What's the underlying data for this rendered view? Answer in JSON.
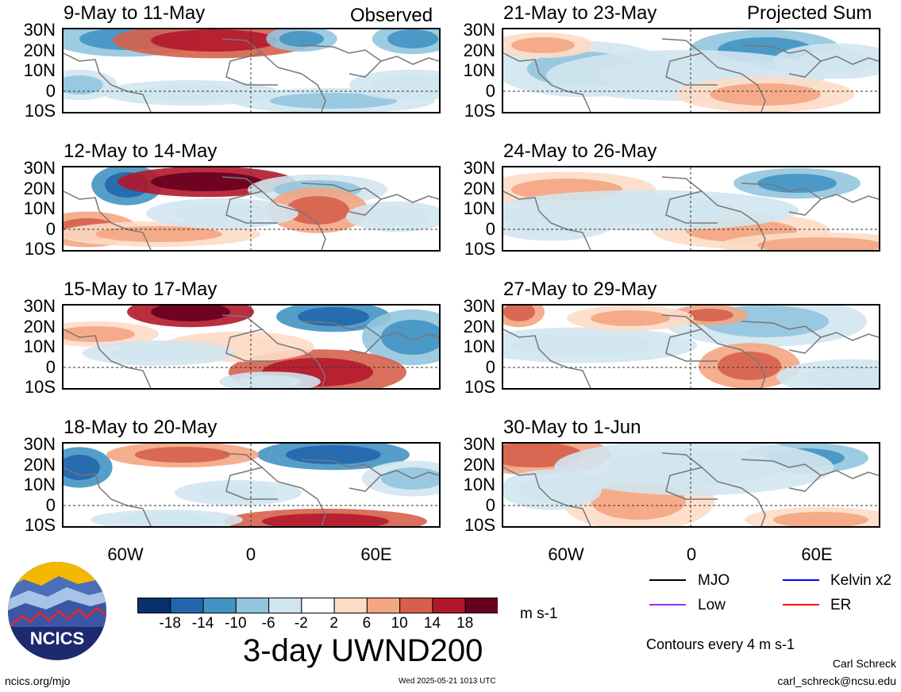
{
  "header": {
    "observed": "Observed",
    "projected": "Projected Sum"
  },
  "panels_left": [
    {
      "title": "9-May to 11-May"
    },
    {
      "title": "12-May to 14-May"
    },
    {
      "title": "15-May to 17-May"
    },
    {
      "title": "18-May to 20-May"
    }
  ],
  "panels_right": [
    {
      "title": "21-May to 23-May"
    },
    {
      "title": "24-May to 26-May"
    },
    {
      "title": "27-May to 29-May"
    },
    {
      "title": "30-May to 1-Jun"
    }
  ],
  "axes": {
    "lat_ticks": [
      "30N",
      "20N",
      "10N",
      "0",
      "10S"
    ],
    "lon_ticks": [
      "60W",
      "0",
      "60E"
    ]
  },
  "colorbar": {
    "labels": [
      "-18",
      "-14",
      "-10",
      "-6",
      "-2",
      "2",
      "6",
      "10",
      "14",
      "18"
    ],
    "colors": [
      "#08306b",
      "#2166ac",
      "#4393c3",
      "#92c5de",
      "#d1e5f0",
      "#ffffff",
      "#fddbc7",
      "#f4a582",
      "#d6604d",
      "#b2182b",
      "#67001f"
    ],
    "units": "m s-1"
  },
  "legend": {
    "mjo": "MJO",
    "kelvin": "Kelvin x2",
    "low": "Low",
    "er": "ER",
    "mjo_color": "#000000",
    "kelvin_color": "#0000ff",
    "low_color": "#9b30ff",
    "er_color": "#ff0000"
  },
  "footer": {
    "title": "3-day UWND200",
    "contours": "Contours every 4 m s-1",
    "author": "Carl Schreck",
    "email": "carl_schreck@ncsu.edu",
    "url": "ncics.org/mjo",
    "timestamp": "Wed 2025-05-21 1013 UTC",
    "logo_text": "NCICS"
  }
}
